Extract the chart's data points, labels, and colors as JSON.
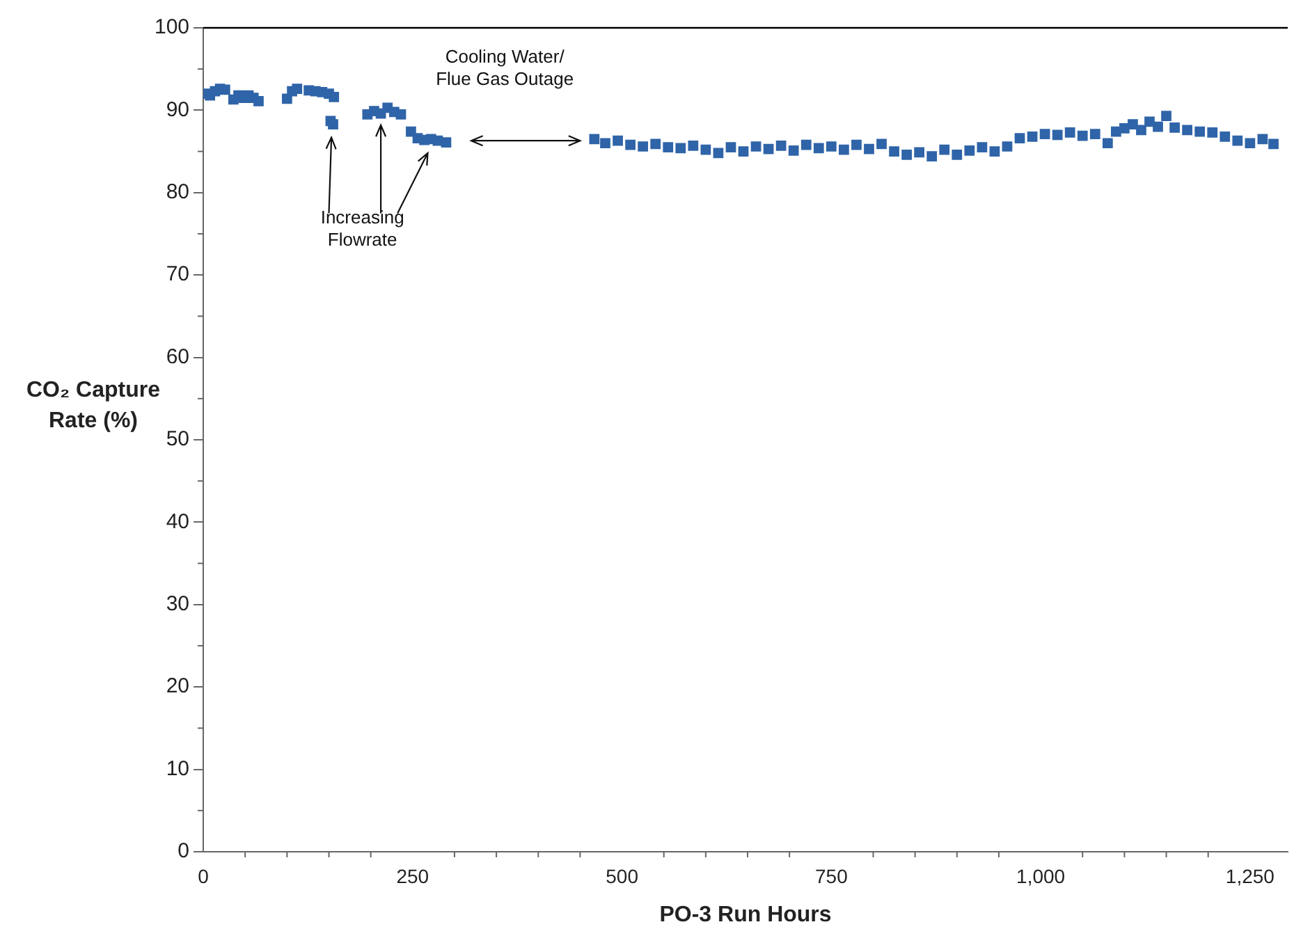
{
  "chart_data": {
    "type": "scatter",
    "xlabel": "PO-3 Run Hours",
    "ylabel": "CO₂ Capture Rate (%)",
    "annotations": [
      "Increasing\nFlowrate",
      "Cooling Water/\nFlue Gas Outage"
    ],
    "xlim": [
      0,
      1295
    ],
    "xticks": [
      0,
      250,
      500,
      750,
      {
        "value": 1000,
        "label": "1,000"
      },
      {
        "value": 1250,
        "label": "1,250"
      }
    ],
    "ylim": [
      0,
      100
    ],
    "yticks": [
      0,
      10,
      20,
      30,
      40,
      50,
      60,
      70,
      80,
      90,
      100
    ],
    "grid": false,
    "legend": false,
    "marker": "square",
    "series": [
      {
        "color": "#2f64a8",
        "x": [
          3,
          8,
          14,
          20,
          26,
          36,
          42,
          48,
          54,
          60,
          66,
          100,
          106,
          112,
          126,
          134,
          142,
          150,
          156,
          152,
          155,
          196,
          204,
          212,
          220,
          228,
          236,
          248,
          256,
          264,
          272,
          280,
          290,
          467,
          480,
          495,
          510,
          525,
          540,
          555,
          570,
          585,
          600,
          615,
          630,
          645,
          660,
          675,
          690,
          705,
          720,
          735,
          750,
          765,
          780,
          795,
          810,
          825,
          840,
          855,
          870,
          885,
          900,
          915,
          930,
          945,
          960,
          975,
          990,
          1005,
          1020,
          1035,
          1050,
          1065,
          1080,
          1090,
          1100,
          1110,
          1120,
          1130,
          1140,
          1150,
          1160,
          1175,
          1190,
          1205,
          1220,
          1235,
          1250,
          1265,
          1278
        ],
        "values": [
          92,
          91.8,
          92.3,
          92.6,
          92.5,
          91.3,
          91.8,
          91.5,
          91.8,
          91.5,
          91.1,
          91.4,
          92.3,
          92.6,
          92.4,
          92.3,
          92.2,
          92,
          91.6,
          88.7,
          88.3,
          89.5,
          89.9,
          89.6,
          90.3,
          89.8,
          89.5,
          87.4,
          86.6,
          86.4,
          86.5,
          86.3,
          86.1,
          86.5,
          86,
          86.3,
          85.8,
          85.6,
          85.9,
          85.5,
          85.4,
          85.7,
          85.2,
          84.8,
          85.5,
          85,
          85.6,
          85.3,
          85.7,
          85.1,
          85.8,
          85.4,
          85.6,
          85.2,
          85.8,
          85.3,
          85.9,
          85,
          84.6,
          84.9,
          84.4,
          85.2,
          84.6,
          85.1,
          85.5,
          85,
          85.6,
          86.6,
          86.8,
          87.1,
          87,
          87.3,
          86.9,
          87.1,
          86,
          87.4,
          87.8,
          88.3,
          87.6,
          88.6,
          88,
          89.3,
          87.9,
          87.6,
          87.4,
          87.3,
          86.8,
          86.3,
          86,
          86.5,
          85.9
        ]
      }
    ]
  }
}
